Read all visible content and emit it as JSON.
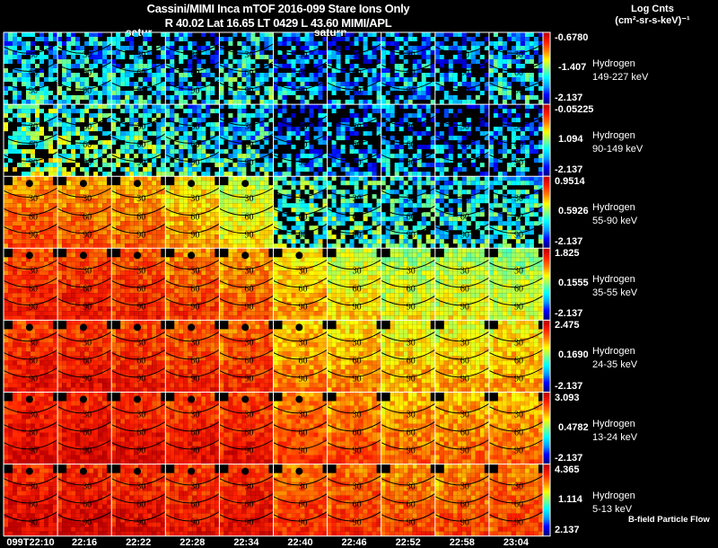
{
  "header": {
    "title_line1": "Cassini/MIMI Inca mTOF  2016-099   Stare   Ions Only",
    "title_line2": "R        40.02 Lat 16.65 LT 0429 L          43.60  MIMI/APL",
    "saturn_labels": [
      "satur",
      "saturn"
    ],
    "units_line1": "Log Cnts",
    "units_line2": "(cm²-sr-s-keV)⁻¹"
  },
  "footer": {
    "flow_label": "B-field Particle Flow"
  },
  "chart_data": {
    "type": "heatmap",
    "title": "Cassini/MIMI Inca mTOF 2016-099 Stare Ions Only",
    "colorbar_label": "Log Cnts (cm2-sr-s-keV)-1",
    "colormap": [
      "#000080",
      "#0000ff",
      "#00a0ff",
      "#00ffff",
      "#80ff80",
      "#ffff00",
      "#ff8000",
      "#ff2000",
      "#c00000"
    ],
    "columns": [
      "099T22:10",
      "22:16",
      "22:22",
      "22:28",
      "22:34",
      "22:40",
      "22:46",
      "22:52",
      "22:58",
      "23:04"
    ],
    "contour_labels": [
      "30",
      "60",
      "90",
      "120"
    ],
    "rows": [
      {
        "species": "Hydrogen",
        "energy": "149-227 keV",
        "cmax": "-0.6780",
        "cmid": "-1.407",
        "cmin": "-2.137",
        "levels": [
          0.3,
          0.32,
          0.3,
          0.28,
          0.34,
          0.24,
          0.22,
          0.26,
          0.24,
          0.3
        ]
      },
      {
        "species": "Hydrogen",
        "energy": "90-149 keV",
        "cmax": "-0.05225",
        "cmid": "1.094",
        "cmin": "-2.137",
        "levels": [
          0.46,
          0.44,
          0.4,
          0.34,
          0.32,
          0.22,
          0.22,
          0.24,
          0.22,
          0.24
        ]
      },
      {
        "species": "Hydrogen",
        "energy": "55-90 keV",
        "cmax": "0.9514",
        "cmid": "0.5926",
        "cmin": "-2.137",
        "levels": [
          0.76,
          0.74,
          0.72,
          0.66,
          0.58,
          0.42,
          0.38,
          0.36,
          0.34,
          0.36
        ]
      },
      {
        "species": "Hydrogen",
        "energy": "35-55 keV",
        "cmax": "1.825",
        "cmid": "0.1555",
        "cmin": "-2.137",
        "levels": [
          0.84,
          0.84,
          0.82,
          0.78,
          0.74,
          0.66,
          0.6,
          0.56,
          0.56,
          0.54
        ]
      },
      {
        "species": "Hydrogen",
        "energy": "24-35 keV",
        "cmax": "2.475",
        "cmid": "0.1690",
        "cmin": "-2.137",
        "levels": [
          0.86,
          0.86,
          0.84,
          0.82,
          0.8,
          0.7,
          0.68,
          0.64,
          0.64,
          0.66
        ]
      },
      {
        "species": "Hydrogen",
        "energy": "13-24 keV",
        "cmax": "3.093",
        "cmid": "0.4782",
        "cmin": "-2.137",
        "levels": [
          0.9,
          0.9,
          0.88,
          0.86,
          0.86,
          0.78,
          0.76,
          0.72,
          0.72,
          0.72
        ]
      },
      {
        "species": "Hydrogen",
        "energy": "5-13 keV",
        "cmax": "4.365",
        "cmid": "1.114",
        "cmin": "2.137",
        "levels": [
          0.9,
          0.9,
          0.88,
          0.86,
          0.88,
          0.8,
          0.8,
          0.76,
          0.76,
          0.78
        ]
      }
    ]
  }
}
